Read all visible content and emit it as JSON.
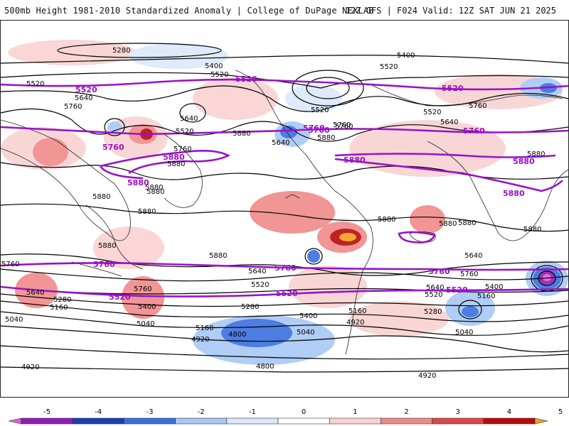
{
  "header": {
    "title_left": "500mb Height 1981-2010 Standardized Anomaly | College of DuPage NEXLAB",
    "title_right": "12Z GFS | F024 Valid: 12Z SAT JUN 21 2025"
  },
  "map": {
    "contour_labels_black": [
      "5280",
      "5400",
      "5400",
      "5520",
      "5520",
      "5520",
      "5520",
      "5640",
      "5760",
      "5760",
      "5640",
      "5520",
      "5640",
      "5760",
      "5880",
      "5880",
      "5880",
      "5880",
      "5880",
      "5880",
      "5760",
      "5880",
      "5520",
      "5640",
      "5760",
      "5640",
      "5880",
      "5880",
      "5880",
      "5880",
      "5640",
      "5760",
      "5520",
      "5400",
      "5280",
      "5160",
      "5040",
      "4920",
      "4800",
      "4920",
      "5040",
      "5160",
      "5280",
      "5400",
      "5520",
      "5640",
      "5760",
      "5160",
      "5040",
      "4800",
      "4920",
      "5160",
      "5280",
      "5400",
      "5040",
      "4920",
      "5640",
      "5760",
      "5880",
      "5880",
      "5880"
    ],
    "contour_labels_purple": [
      "5520",
      "5520",
      "5520",
      "5760",
      "5760",
      "5760",
      "5880",
      "5880",
      "5880",
      "5880",
      "5880",
      "5760",
      "5760",
      "5760",
      "5520",
      "5520",
      "5520",
      "5760"
    ],
    "colors": {
      "purple_contour": "#9a12c8",
      "black_contour": "#000000",
      "land_outline": "#222222"
    }
  },
  "colorbar": {
    "ticks": [
      "-5",
      "-4",
      "-3",
      "-2",
      "-1",
      "0",
      "1",
      "2",
      "3",
      "4",
      "5"
    ],
    "colors": [
      "#e25cd8",
      "#8e1fb6",
      "#1a3fb0",
      "#3a6fe0",
      "#a8c8f4",
      "#dce8fa",
      "#ffffff",
      "#f9d2d2",
      "#f08a8a",
      "#e04848",
      "#b80c0c",
      "#f3a020"
    ]
  }
}
